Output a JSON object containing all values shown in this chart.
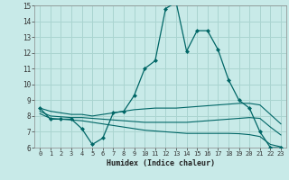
{
  "xlabel": "Humidex (Indice chaleur)",
  "bg_color": "#c8eae8",
  "grid_color": "#aad4d0",
  "line_color": "#006666",
  "xlim": [
    -0.5,
    23.5
  ],
  "ylim": [
    6,
    15
  ],
  "xticks": [
    0,
    1,
    2,
    3,
    4,
    5,
    6,
    7,
    8,
    9,
    10,
    11,
    12,
    13,
    14,
    15,
    16,
    17,
    18,
    19,
    20,
    21,
    22,
    23
  ],
  "yticks": [
    6,
    7,
    8,
    9,
    10,
    11,
    12,
    13,
    14,
    15
  ],
  "curve1_x": [
    0,
    1,
    2,
    3,
    4,
    5,
    6,
    7,
    8,
    9,
    10,
    11,
    12,
    13,
    14,
    15,
    16,
    17,
    18,
    19,
    20,
    21,
    22,
    23
  ],
  "curve1_y": [
    8.5,
    7.8,
    7.8,
    7.8,
    7.2,
    6.2,
    6.6,
    8.2,
    8.3,
    9.3,
    11.0,
    11.5,
    14.8,
    15.2,
    12.1,
    13.4,
    13.4,
    12.2,
    10.3,
    9.0,
    8.5,
    7.0,
    6.0,
    6.0
  ],
  "curve2_x": [
    0,
    1,
    2,
    3,
    4,
    5,
    6,
    7,
    8,
    9,
    10,
    11,
    12,
    13,
    14,
    15,
    16,
    17,
    18,
    19,
    20,
    21,
    22,
    23
  ],
  "curve2_y": [
    8.5,
    8.3,
    8.2,
    8.1,
    8.1,
    8.0,
    8.1,
    8.2,
    8.3,
    8.4,
    8.45,
    8.5,
    8.5,
    8.5,
    8.55,
    8.6,
    8.65,
    8.7,
    8.75,
    8.8,
    8.8,
    8.7,
    8.1,
    7.5
  ],
  "curve3_x": [
    0,
    1,
    2,
    3,
    4,
    5,
    6,
    7,
    8,
    9,
    10,
    11,
    12,
    13,
    14,
    15,
    16,
    17,
    18,
    19,
    20,
    21,
    22,
    23
  ],
  "curve3_y": [
    8.3,
    8.0,
    7.95,
    7.9,
    7.9,
    7.85,
    7.8,
    7.75,
    7.7,
    7.65,
    7.6,
    7.6,
    7.6,
    7.6,
    7.6,
    7.65,
    7.7,
    7.75,
    7.8,
    7.85,
    7.9,
    7.85,
    7.3,
    6.8
  ],
  "curve4_x": [
    0,
    1,
    2,
    3,
    4,
    5,
    6,
    7,
    8,
    9,
    10,
    11,
    12,
    13,
    14,
    15,
    16,
    17,
    18,
    19,
    20,
    21,
    22,
    23
  ],
  "curve4_y": [
    8.15,
    7.85,
    7.8,
    7.75,
    7.7,
    7.6,
    7.5,
    7.4,
    7.3,
    7.2,
    7.1,
    7.05,
    7.0,
    6.95,
    6.9,
    6.9,
    6.9,
    6.9,
    6.9,
    6.88,
    6.82,
    6.7,
    6.2,
    6.05
  ]
}
